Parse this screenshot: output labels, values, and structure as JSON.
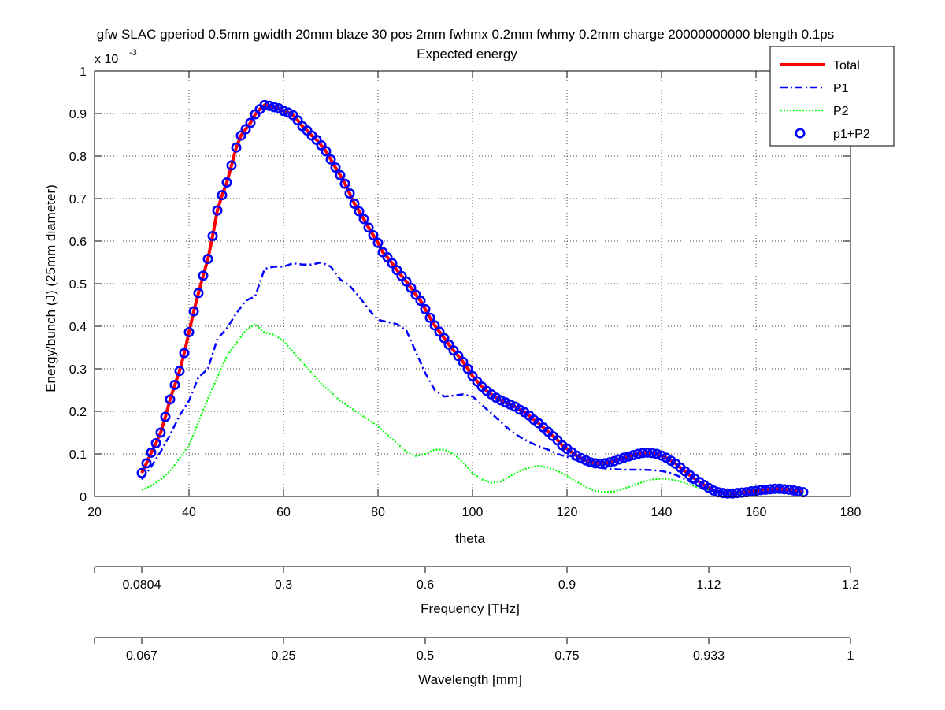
{
  "window": {
    "background": "#ffffff"
  },
  "chart_data": {
    "type": "line",
    "title": "gfw SLAC gperiod 0.5mm gwidth 20mm blaze 30 pos 2mm fwhmx 0.2mm fwhmy 0.2mm charge 20000000000 blength 0.1ps",
    "subtitle": "Expected energy",
    "xlabel": "theta",
    "ylabel": "Energy/bunch (J) (25mm diameter)",
    "y_multiplier_base": "x 10",
    "y_multiplier_exp": "-3",
    "xlim": [
      20,
      180
    ],
    "ylim": [
      0,
      1
    ],
    "x_ticks": [
      20,
      40,
      60,
      80,
      100,
      120,
      140,
      160,
      180
    ],
    "x_tick_labels": [
      "20",
      "40",
      "60",
      "80",
      "100",
      "120",
      "140",
      "160",
      "180"
    ],
    "y_ticks": [
      0,
      0.1,
      0.2,
      0.3,
      0.4,
      0.5,
      0.6,
      0.7,
      0.8,
      0.9,
      1
    ],
    "y_tick_labels": [
      "0",
      "0.1",
      "0.2",
      "0.3",
      "0.4",
      "0.5",
      "0.6",
      "0.7",
      "0.8",
      "0.9",
      "1"
    ],
    "grid": true,
    "legend_position": "top-right",
    "secondary_axes": [
      {
        "label": "Frequency [THz]",
        "ticks_theta": [
          30,
          60,
          90,
          120,
          150,
          180
        ],
        "tick_labels": [
          "0.0804",
          "0.3",
          "0.6",
          "0.9",
          "1.12",
          "1.2"
        ]
      },
      {
        "label": "Wavelength [mm]",
        "ticks_theta": [
          30,
          60,
          90,
          120,
          150,
          180
        ],
        "tick_labels": [
          "0.067",
          "0.25",
          "0.5",
          "0.75",
          "0.933",
          "1"
        ]
      }
    ],
    "series": [
      {
        "name": "Total",
        "style": "solid",
        "color": "#ff0000",
        "x": [
          30,
          31,
          32,
          33,
          34,
          35,
          36,
          37,
          38,
          39,
          40,
          41,
          42,
          43,
          44,
          45,
          46,
          47,
          48,
          49,
          50,
          51,
          52,
          53,
          54,
          55,
          56,
          57,
          58,
          59,
          60,
          61,
          62,
          63,
          64,
          65,
          66,
          67,
          68,
          69,
          70,
          71,
          72,
          73,
          74,
          75,
          76,
          77,
          78,
          79,
          80,
          81,
          82,
          83,
          84,
          85,
          86,
          87,
          88,
          89,
          90,
          91,
          92,
          93,
          94,
          95,
          96,
          97,
          98,
          99,
          100,
          101,
          102,
          103,
          104,
          105,
          106,
          107,
          108,
          109,
          110,
          111,
          112,
          113,
          114,
          115,
          116,
          117,
          118,
          119,
          120,
          121,
          122,
          123,
          124,
          125,
          126,
          127,
          128,
          129,
          130,
          131,
          132,
          133,
          134,
          135,
          136,
          137,
          138,
          139,
          140,
          141,
          142,
          143,
          144,
          145,
          146,
          147,
          148,
          149,
          150,
          151,
          152,
          153,
          154,
          155,
          156,
          157,
          158,
          159,
          160,
          161,
          162,
          163,
          164,
          165,
          166,
          167,
          168,
          169,
          170
        ],
        "y": [
          0.055,
          0.078,
          0.103,
          0.125,
          0.15,
          0.187,
          0.228,
          0.262,
          0.295,
          0.337,
          0.386,
          0.435,
          0.478,
          0.519,
          0.558,
          0.612,
          0.672,
          0.708,
          0.738,
          0.778,
          0.82,
          0.848,
          0.863,
          0.878,
          0.898,
          0.91,
          0.92,
          0.918,
          0.915,
          0.912,
          0.906,
          0.902,
          0.896,
          0.884,
          0.87,
          0.86,
          0.848,
          0.838,
          0.825,
          0.811,
          0.792,
          0.773,
          0.755,
          0.735,
          0.712,
          0.688,
          0.67,
          0.652,
          0.632,
          0.614,
          0.596,
          0.574,
          0.562,
          0.548,
          0.532,
          0.518,
          0.505,
          0.49,
          0.474,
          0.46,
          0.44,
          0.42,
          0.402,
          0.387,
          0.372,
          0.357,
          0.343,
          0.33,
          0.316,
          0.3,
          0.283,
          0.27,
          0.258,
          0.248,
          0.24,
          0.232,
          0.226,
          0.221,
          0.216,
          0.211,
          0.204,
          0.198,
          0.19,
          0.18,
          0.172,
          0.162,
          0.152,
          0.142,
          0.132,
          0.12,
          0.112,
          0.104,
          0.096,
          0.09,
          0.085,
          0.08,
          0.078,
          0.077,
          0.078,
          0.08,
          0.083,
          0.087,
          0.091,
          0.094,
          0.097,
          0.1,
          0.102,
          0.103,
          0.102,
          0.1,
          0.096,
          0.091,
          0.084,
          0.077,
          0.068,
          0.059,
          0.05,
          0.042,
          0.034,
          0.027,
          0.02,
          0.014,
          0.01,
          0.008,
          0.007,
          0.007,
          0.008,
          0.009,
          0.01,
          0.012,
          0.013,
          0.015,
          0.016,
          0.017,
          0.018,
          0.018,
          0.017,
          0.016,
          0.014,
          0.012,
          0.01
        ]
      },
      {
        "name": "P1",
        "style": "dashdot",
        "color": "#0000ff",
        "x": [
          30,
          32,
          34,
          36,
          38,
          40,
          42,
          44,
          46,
          48,
          50,
          52,
          54,
          56,
          58,
          60,
          62,
          64,
          66,
          68,
          70,
          72,
          74,
          76,
          78,
          80,
          82,
          84,
          86,
          88,
          90,
          92,
          94,
          96,
          98,
          100,
          102,
          104,
          106,
          108,
          110,
          112,
          114,
          116,
          118,
          120,
          122,
          124,
          126,
          128,
          130,
          132,
          134,
          136,
          138,
          140,
          142,
          144,
          146,
          148,
          150,
          152,
          154,
          156,
          158,
          160,
          162,
          164,
          166,
          168,
          170
        ],
        "y": [
          0.04,
          0.07,
          0.105,
          0.145,
          0.19,
          0.225,
          0.28,
          0.3,
          0.37,
          0.395,
          0.43,
          0.46,
          0.47,
          0.535,
          0.54,
          0.54,
          0.548,
          0.545,
          0.545,
          0.55,
          0.54,
          0.51,
          0.495,
          0.47,
          0.44,
          0.415,
          0.41,
          0.405,
          0.39,
          0.34,
          0.29,
          0.25,
          0.235,
          0.237,
          0.24,
          0.235,
          0.215,
          0.195,
          0.175,
          0.155,
          0.14,
          0.128,
          0.118,
          0.11,
          0.1,
          0.093,
          0.085,
          0.075,
          0.07,
          0.066,
          0.064,
          0.063,
          0.063,
          0.063,
          0.062,
          0.06,
          0.055,
          0.046,
          0.035,
          0.024,
          0.016,
          0.01,
          0.008,
          0.007,
          0.007,
          0.008,
          0.009,
          0.01,
          0.01,
          0.009,
          0.008
        ]
      },
      {
        "name": "P2",
        "style": "dotted",
        "color": "#00ff00",
        "x": [
          30,
          32,
          34,
          36,
          38,
          40,
          42,
          44,
          46,
          48,
          50,
          52,
          54,
          56,
          58,
          60,
          62,
          64,
          66,
          68,
          70,
          72,
          74,
          76,
          78,
          80,
          82,
          84,
          86,
          88,
          90,
          92,
          94,
          96,
          98,
          100,
          102,
          104,
          106,
          108,
          110,
          112,
          114,
          116,
          118,
          120,
          122,
          124,
          126,
          128,
          130,
          132,
          134,
          136,
          138,
          140,
          142,
          144,
          146,
          148,
          150,
          152,
          154,
          156,
          158,
          160,
          162,
          164,
          166,
          168,
          170
        ],
        "y": [
          0.015,
          0.025,
          0.04,
          0.06,
          0.09,
          0.12,
          0.175,
          0.23,
          0.28,
          0.33,
          0.36,
          0.39,
          0.405,
          0.385,
          0.38,
          0.365,
          0.34,
          0.315,
          0.29,
          0.265,
          0.245,
          0.225,
          0.21,
          0.195,
          0.18,
          0.165,
          0.145,
          0.125,
          0.105,
          0.095,
          0.1,
          0.11,
          0.11,
          0.1,
          0.08,
          0.055,
          0.04,
          0.032,
          0.035,
          0.048,
          0.06,
          0.068,
          0.072,
          0.068,
          0.06,
          0.048,
          0.035,
          0.022,
          0.013,
          0.01,
          0.012,
          0.018,
          0.026,
          0.034,
          0.04,
          0.042,
          0.04,
          0.035,
          0.028,
          0.02,
          0.014,
          0.01,
          0.008,
          0.007,
          0.007,
          0.008,
          0.009,
          0.009,
          0.008,
          0.006,
          0.005
        ]
      },
      {
        "name": "p1+P2",
        "style": "circles",
        "color": "#0000ff",
        "x": [
          30,
          31,
          32,
          33,
          34,
          35,
          36,
          37,
          38,
          39,
          40,
          41,
          42,
          43,
          44,
          45,
          46,
          47,
          48,
          49,
          50,
          51,
          52,
          53,
          54,
          55,
          56,
          57,
          58,
          59,
          60,
          61,
          62,
          63,
          64,
          65,
          66,
          67,
          68,
          69,
          70,
          71,
          72,
          73,
          74,
          75,
          76,
          77,
          78,
          79,
          80,
          81,
          82,
          83,
          84,
          85,
          86,
          87,
          88,
          89,
          90,
          91,
          92,
          93,
          94,
          95,
          96,
          97,
          98,
          99,
          100,
          101,
          102,
          103,
          104,
          105,
          106,
          107,
          108,
          109,
          110,
          111,
          112,
          113,
          114,
          115,
          116,
          117,
          118,
          119,
          120,
          121,
          122,
          123,
          124,
          125,
          126,
          127,
          128,
          129,
          130,
          131,
          132,
          133,
          134,
          135,
          136,
          137,
          138,
          139,
          140,
          141,
          142,
          143,
          144,
          145,
          146,
          147,
          148,
          149,
          150,
          151,
          152,
          153,
          154,
          155,
          156,
          157,
          158,
          159,
          160,
          161,
          162,
          163,
          164,
          165,
          166,
          167,
          168,
          169,
          170
        ],
        "y": [
          0.055,
          0.078,
          0.103,
          0.125,
          0.15,
          0.187,
          0.228,
          0.262,
          0.295,
          0.337,
          0.386,
          0.435,
          0.478,
          0.519,
          0.558,
          0.612,
          0.672,
          0.708,
          0.738,
          0.778,
          0.82,
          0.848,
          0.863,
          0.878,
          0.898,
          0.91,
          0.92,
          0.918,
          0.915,
          0.912,
          0.906,
          0.902,
          0.896,
          0.884,
          0.87,
          0.86,
          0.848,
          0.838,
          0.825,
          0.811,
          0.792,
          0.773,
          0.755,
          0.735,
          0.712,
          0.688,
          0.67,
          0.652,
          0.632,
          0.614,
          0.596,
          0.574,
          0.562,
          0.548,
          0.532,
          0.518,
          0.505,
          0.49,
          0.474,
          0.46,
          0.44,
          0.42,
          0.402,
          0.387,
          0.372,
          0.357,
          0.343,
          0.33,
          0.316,
          0.3,
          0.283,
          0.27,
          0.258,
          0.248,
          0.24,
          0.232,
          0.226,
          0.221,
          0.216,
          0.211,
          0.204,
          0.198,
          0.19,
          0.18,
          0.172,
          0.162,
          0.152,
          0.142,
          0.132,
          0.12,
          0.112,
          0.104,
          0.096,
          0.09,
          0.085,
          0.08,
          0.078,
          0.077,
          0.078,
          0.08,
          0.083,
          0.087,
          0.091,
          0.094,
          0.097,
          0.1,
          0.102,
          0.103,
          0.102,
          0.1,
          0.096,
          0.091,
          0.084,
          0.077,
          0.068,
          0.059,
          0.05,
          0.042,
          0.034,
          0.027,
          0.02,
          0.014,
          0.01,
          0.008,
          0.007,
          0.007,
          0.008,
          0.009,
          0.01,
          0.012,
          0.013,
          0.015,
          0.016,
          0.017,
          0.018,
          0.018,
          0.017,
          0.016,
          0.014,
          0.012,
          0.01
        ]
      }
    ]
  }
}
